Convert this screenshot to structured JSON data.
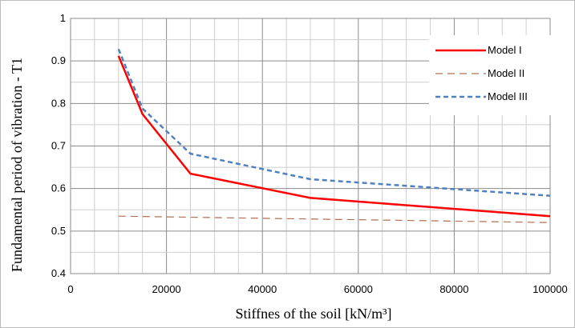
{
  "chart_data": {
    "type": "line",
    "title": "",
    "xlabel": "Stiffnes of the soil [kN/m³]",
    "ylabel": "Fundamental period of vibration - T1",
    "xlim": [
      0,
      100000
    ],
    "ylim": [
      0.4,
      1.0
    ],
    "xticks": [
      0,
      20000,
      40000,
      60000,
      80000,
      100000
    ],
    "xtick_labels": [
      "0",
      "20000",
      "40000",
      "60000",
      "80000",
      "100000"
    ],
    "yticks": [
      0.4,
      0.5,
      0.6,
      0.7,
      0.8,
      0.9,
      1.0
    ],
    "ytick_labels": [
      "0.4",
      "0.5",
      "0.6",
      "0.7",
      "0.8",
      "0.9",
      "1"
    ],
    "grid": true,
    "legend_position": "top-right",
    "series": [
      {
        "name": "Model I",
        "color": "#ff0000",
        "style": "solid",
        "x": [
          10000,
          15000,
          25000,
          50000,
          100000
        ],
        "y": [
          0.912,
          0.775,
          0.635,
          0.578,
          0.535
        ]
      },
      {
        "name": "Model II",
        "color": "#b07050",
        "style": "dashed",
        "x": [
          10000,
          100000
        ],
        "y": [
          0.535,
          0.52
        ]
      },
      {
        "name": "Model III",
        "color": "#4f81bd",
        "style": "dashed",
        "x": [
          10000,
          15000,
          25000,
          50000,
          100000
        ],
        "y": [
          0.928,
          0.788,
          0.682,
          0.622,
          0.583
        ]
      }
    ]
  }
}
